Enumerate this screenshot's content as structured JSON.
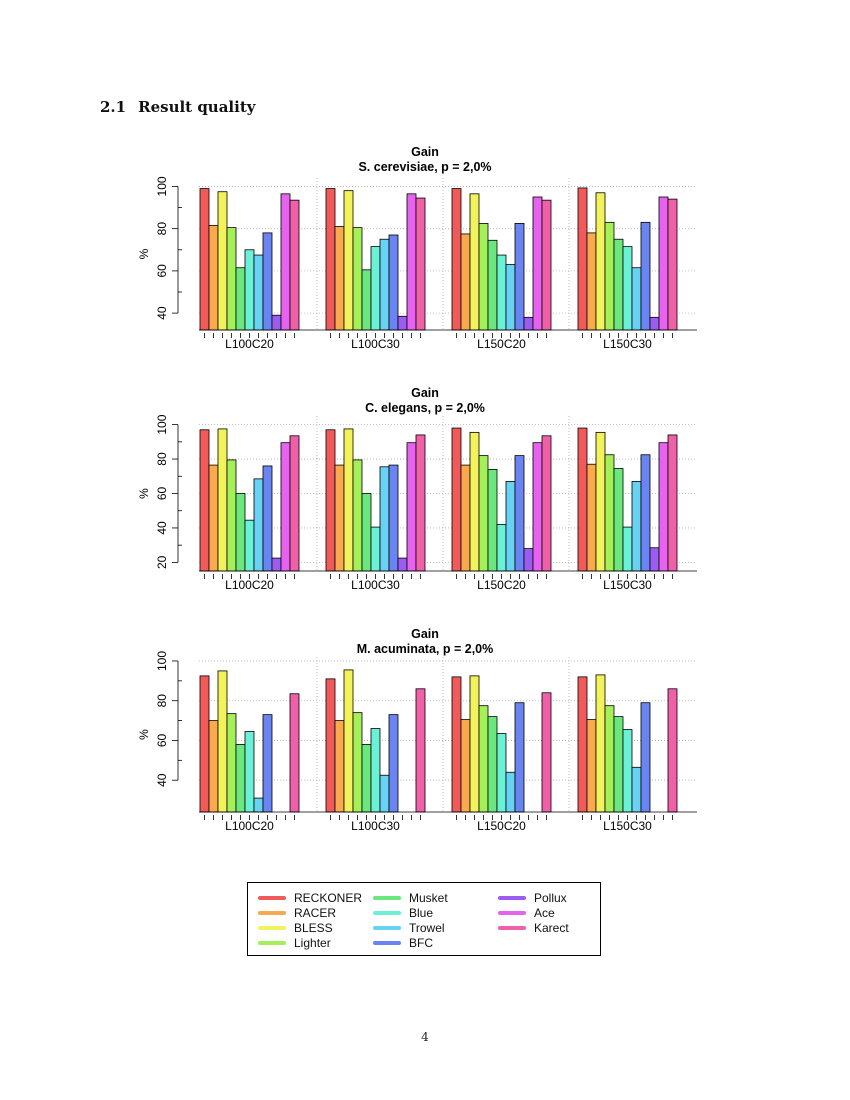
{
  "section": {
    "number": "2.1",
    "title": "Result quality"
  },
  "page_number": "4",
  "tools": [
    {
      "name": "RECKONER",
      "color": "#f25a5a"
    },
    {
      "name": "RACER",
      "color": "#f9a94f"
    },
    {
      "name": "BLESS",
      "color": "#f2f25a"
    },
    {
      "name": "Lighter",
      "color": "#a4ef5a"
    },
    {
      "name": "Musket",
      "color": "#6be87d"
    },
    {
      "name": "Blue",
      "color": "#6cf1d6"
    },
    {
      "name": "Trowel",
      "color": "#68d2f4"
    },
    {
      "name": "BFC",
      "color": "#6a84f2"
    },
    {
      "name": "Pollux",
      "color": "#9c5cf2"
    },
    {
      "name": "Ace",
      "color": "#e563ee"
    },
    {
      "name": "Karect",
      "color": "#f060a8"
    }
  ],
  "chart_data": [
    {
      "type": "bar",
      "title": "Gain",
      "subtitle": "S. cerevisiae, p = 2,0%",
      "xlabel": "",
      "ylabel": "%",
      "ylim": [
        32,
        104
      ],
      "yticks": [
        40,
        60,
        80,
        100
      ],
      "grid": true,
      "categories": [
        "L100C20",
        "L100C30",
        "L150C20",
        "L150C30"
      ],
      "series": [
        {
          "name": "RECKONER",
          "values": [
            99,
            99,
            99,
            99.3
          ]
        },
        {
          "name": "RACER",
          "values": [
            81.5,
            81,
            77.5,
            78
          ]
        },
        {
          "name": "BLESS",
          "values": [
            97.5,
            98,
            96.5,
            97
          ]
        },
        {
          "name": "Lighter",
          "values": [
            80.5,
            80.5,
            82.5,
            83
          ]
        },
        {
          "name": "Musket",
          "values": [
            61.5,
            60.5,
            74.5,
            75
          ]
        },
        {
          "name": "Blue",
          "values": [
            70,
            71.5,
            67.5,
            71.5
          ]
        },
        {
          "name": "Trowel",
          "values": [
            67.5,
            75,
            63,
            61.5
          ]
        },
        {
          "name": "BFC",
          "values": [
            78,
            77,
            82.5,
            83
          ]
        },
        {
          "name": "Pollux",
          "values": [
            39,
            38.5,
            38,
            38
          ]
        },
        {
          "name": "Ace",
          "values": [
            96.5,
            96.5,
            95,
            95
          ]
        },
        {
          "name": "Karect",
          "values": [
            93.5,
            94.5,
            93.5,
            94
          ]
        }
      ]
    },
    {
      "type": "bar",
      "title": "Gain",
      "subtitle": "C. elegans, p = 2,0%",
      "xlabel": "",
      "ylabel": "%",
      "ylim": [
        15,
        105
      ],
      "yticks": [
        20,
        40,
        60,
        80,
        100
      ],
      "grid": true,
      "categories": [
        "L100C20",
        "L100C30",
        "L150C20",
        "L150C30"
      ],
      "series": [
        {
          "name": "RECKONER",
          "values": [
            97,
            97,
            98,
            98
          ]
        },
        {
          "name": "RACER",
          "values": [
            76.5,
            76.5,
            76.5,
            77
          ]
        },
        {
          "name": "BLESS",
          "values": [
            97.5,
            97.5,
            95.5,
            95.5
          ]
        },
        {
          "name": "Lighter",
          "values": [
            79.5,
            79.5,
            82,
            82.5
          ]
        },
        {
          "name": "Musket",
          "values": [
            60,
            60,
            74,
            74.5
          ]
        },
        {
          "name": "Blue",
          "values": [
            44.5,
            40.5,
            42,
            40.5
          ]
        },
        {
          "name": "Trowel",
          "values": [
            68.5,
            75.5,
            67,
            67
          ]
        },
        {
          "name": "BFC",
          "values": [
            76,
            76.5,
            82,
            82.5
          ]
        },
        {
          "name": "Pollux",
          "values": [
            22.5,
            22.5,
            28,
            28.5
          ]
        },
        {
          "name": "Ace",
          "values": [
            89.5,
            89.5,
            89.5,
            89.5
          ]
        },
        {
          "name": "Karect",
          "values": [
            93.5,
            94,
            93.5,
            94
          ]
        }
      ]
    },
    {
      "type": "bar",
      "title": "Gain",
      "subtitle": "M. acuminata, p = 2,0%",
      "xlabel": "",
      "ylabel": "%",
      "ylim": [
        24,
        102
      ],
      "yticks": [
        40,
        60,
        80,
        100
      ],
      "grid": true,
      "categories": [
        "L100C20",
        "L100C30",
        "L150C20",
        "L150C30"
      ],
      "series": [
        {
          "name": "RECKONER",
          "values": [
            92.5,
            91,
            92,
            92
          ]
        },
        {
          "name": "RACER",
          "values": [
            70,
            70,
            70.5,
            70.5
          ]
        },
        {
          "name": "BLESS",
          "values": [
            95,
            95.5,
            92.5,
            93
          ]
        },
        {
          "name": "Lighter",
          "values": [
            73.5,
            74,
            77.5,
            77.5
          ]
        },
        {
          "name": "Musket",
          "values": [
            58,
            58,
            72,
            72
          ]
        },
        {
          "name": "Blue",
          "values": [
            64.5,
            66,
            63.5,
            65.5
          ]
        },
        {
          "name": "Trowel",
          "values": [
            31,
            42.5,
            44,
            46.5
          ]
        },
        {
          "name": "BFC",
          "values": [
            73,
            73,
            79,
            79
          ]
        },
        {
          "name": "Pollux",
          "values": [
            null,
            null,
            null,
            null
          ]
        },
        {
          "name": "Ace",
          "values": [
            null,
            null,
            null,
            null
          ]
        },
        {
          "name": "Karect",
          "values": [
            83.5,
            86,
            84,
            86
          ]
        }
      ]
    }
  ]
}
